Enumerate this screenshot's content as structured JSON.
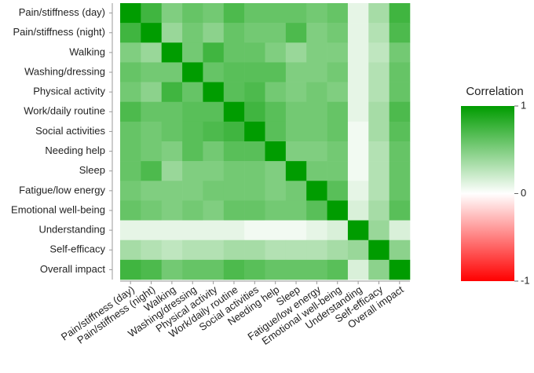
{
  "chart_data": {
    "type": "heatmap",
    "categories": [
      "Pain/stiffness (day)",
      "Pain/stiffness (night)",
      "Walking",
      "Washing/dressing",
      "Physical activity",
      "Work/daily routine",
      "Social activities",
      "Needing help",
      "Sleep",
      "Fatigue/low energy",
      "Emotional well-being",
      "Understanding",
      "Self-efficacy",
      "Overall impact"
    ],
    "values": [
      [
        1,
        0.75,
        0.5,
        0.6,
        0.55,
        0.7,
        0.6,
        0.6,
        0.6,
        0.55,
        0.6,
        0.1,
        0.35,
        0.75
      ],
      [
        0.75,
        1,
        0.4,
        0.55,
        0.45,
        0.6,
        0.55,
        0.55,
        0.7,
        0.5,
        0.55,
        0.1,
        0.3,
        0.7
      ],
      [
        0.5,
        0.4,
        1,
        0.55,
        0.75,
        0.6,
        0.6,
        0.5,
        0.4,
        0.5,
        0.5,
        0.1,
        0.25,
        0.55
      ],
      [
        0.6,
        0.55,
        0.55,
        1,
        0.6,
        0.65,
        0.65,
        0.65,
        0.5,
        0.5,
        0.55,
        0.1,
        0.3,
        0.6
      ],
      [
        0.55,
        0.45,
        0.75,
        0.6,
        1,
        0.65,
        0.7,
        0.55,
        0.5,
        0.55,
        0.5,
        0.1,
        0.3,
        0.6
      ],
      [
        0.7,
        0.6,
        0.6,
        0.65,
        0.65,
        1,
        0.75,
        0.65,
        0.55,
        0.55,
        0.6,
        0.1,
        0.35,
        0.7
      ],
      [
        0.6,
        0.55,
        0.6,
        0.65,
        0.7,
        0.75,
        1,
        0.65,
        0.55,
        0.55,
        0.6,
        0.05,
        0.35,
        0.65
      ],
      [
        0.6,
        0.55,
        0.5,
        0.65,
        0.55,
        0.65,
        0.65,
        1,
        0.5,
        0.5,
        0.55,
        0.05,
        0.3,
        0.6
      ],
      [
        0.6,
        0.7,
        0.4,
        0.5,
        0.5,
        0.55,
        0.55,
        0.5,
        1,
        0.55,
        0.55,
        0.05,
        0.3,
        0.6
      ],
      [
        0.55,
        0.5,
        0.5,
        0.5,
        0.55,
        0.55,
        0.55,
        0.5,
        0.55,
        1,
        0.65,
        0.1,
        0.3,
        0.6
      ],
      [
        0.6,
        0.55,
        0.5,
        0.55,
        0.5,
        0.6,
        0.6,
        0.55,
        0.55,
        0.65,
        1,
        0.15,
        0.35,
        0.65
      ],
      [
        0.1,
        0.1,
        0.1,
        0.1,
        0.1,
        0.1,
        0.05,
        0.05,
        0.05,
        0.1,
        0.15,
        1,
        0.4,
        0.15
      ],
      [
        0.35,
        0.3,
        0.25,
        0.3,
        0.3,
        0.35,
        0.35,
        0.3,
        0.3,
        0.3,
        0.35,
        0.4,
        1,
        0.45
      ],
      [
        0.75,
        0.7,
        0.55,
        0.6,
        0.6,
        0.7,
        0.65,
        0.6,
        0.6,
        0.6,
        0.65,
        0.15,
        0.45,
        1
      ]
    ],
    "colors": {
      "low": "#ff0000",
      "mid": "#ffffff",
      "high": "#009c00"
    },
    "colorbar": {
      "title": "Correlation",
      "lim": [
        -1,
        1
      ],
      "ticks": [
        -1,
        0,
        1
      ]
    }
  }
}
